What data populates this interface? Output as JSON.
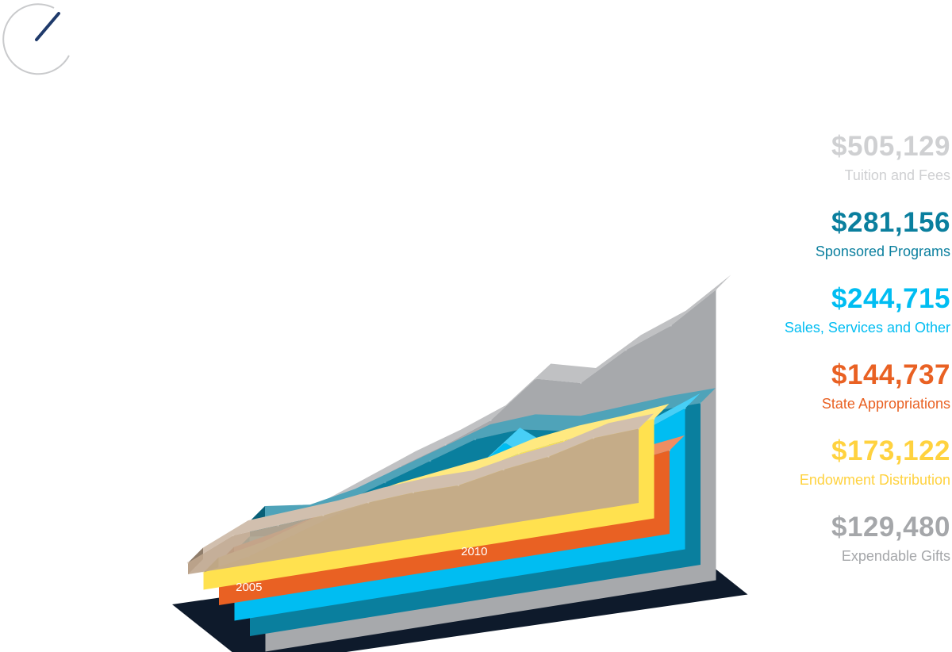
{
  "colors": {
    "tuition": "#a7a9ac",
    "sponsored": "#0a7f9e",
    "sales": "#00bdf2",
    "state": "#e96123",
    "endowment": "#ffe14f",
    "gifts": "#bfa68e",
    "base": "#0e1a2b",
    "gauge": "#1f3a6b"
  },
  "chart_data": {
    "type": "area",
    "x": [
      2004,
      2005,
      2006,
      2007,
      2008,
      2009,
      2010,
      2011,
      2012,
      2013,
      2014
    ],
    "x_tick_labels": [
      "2005",
      "2010"
    ],
    "x_ticks": [
      2005,
      2010
    ],
    "grid": false,
    "legend_position": "right",
    "series": [
      {
        "name": "Tuition and Fees",
        "key": "tuition",
        "total": "$505,129",
        "values": [
          200,
          225,
          255,
          285,
          310,
          340,
          400,
          380,
          425,
          455,
          505
        ]
      },
      {
        "name": "Sponsored Programs",
        "key": "sponsored",
        "total": "$281,156",
        "values": [
          200,
          190,
          205,
          230,
          255,
          280,
          285,
          270,
          275,
          280,
          281
        ]
      },
      {
        "name": "Sales, Services and Other",
        "key": "sales",
        "total": "$244,715",
        "values": [
          120,
          110,
          125,
          140,
          155,
          175,
          235,
          175,
          200,
          215,
          245
        ]
      },
      {
        "name": "State Appropriations",
        "key": "state",
        "total": "$144,737",
        "values": [
          75,
          90,
          110,
          115,
          105,
          100,
          105,
          115,
          125,
          135,
          145
        ]
      },
      {
        "name": "Endowment Distribution",
        "key": "endowment",
        "total": "$173,122",
        "values": [
          30,
          45,
          70,
          95,
          110,
          120,
          130,
          150,
          160,
          165,
          173
        ]
      },
      {
        "name": "Expendable Gifts",
        "key": "gifts",
        "total": "$129,480",
        "values": [
          20,
          55,
          60,
          65,
          75,
          80,
          80,
          95,
          105,
          125,
          129
        ]
      }
    ]
  }
}
